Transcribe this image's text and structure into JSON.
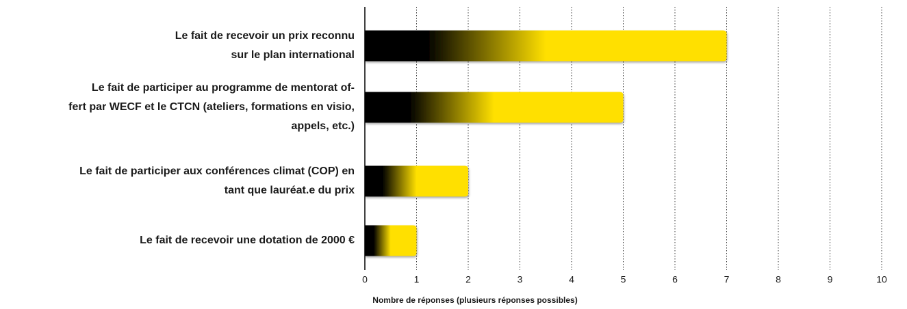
{
  "chart_data": {
    "type": "bar",
    "orientation": "horizontal",
    "categories": [
      "Le fait de recevoir un prix reconnu\nsur le plan international",
      "Le fait de participer au programme de mentorat of-\nfert par WECF et le CTCN (ateliers, formations en visio,\nappels, etc.)",
      "Le fait de participer aux conférences climat (COP) en\ntant que lauréat.e du prix",
      "Le fait de recevoir une dotation de 2000 €"
    ],
    "values": [
      7,
      5,
      2,
      1
    ],
    "color": "#ffe000",
    "xlabel": "Nombre de réponses (plusieurs réponses possibles)",
    "xlim": [
      0,
      10
    ],
    "xticks": [
      0,
      1,
      2,
      3,
      4,
      5,
      6,
      7,
      8,
      9,
      10
    ],
    "grid": true
  }
}
